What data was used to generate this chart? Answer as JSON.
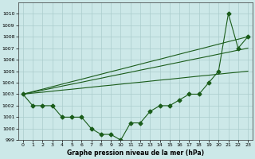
{
  "xlabel": "Graphe pression niveau de la mer (hPa)",
  "bg_color": "#cce8e8",
  "grid_color": "#aacccc",
  "line_color": "#1a5c1a",
  "x_values": [
    0,
    1,
    2,
    3,
    4,
    5,
    6,
    7,
    8,
    9,
    10,
    11,
    12,
    13,
    14,
    15,
    16,
    17,
    18,
    19,
    20,
    21,
    22,
    23
  ],
  "series_data": [
    1003,
    1002,
    1002,
    1002,
    1001,
    1001,
    1001,
    1000,
    999.5,
    999.5,
    999,
    1000.5,
    1000.5,
    1001.5,
    1002,
    1002,
    1002.5,
    1003,
    1003,
    1004,
    1005,
    1010,
    1007,
    1008
  ],
  "series_trend1": [
    1003,
    1003.22,
    1003.43,
    1003.65,
    1003.87,
    1004.09,
    1004.3,
    1004.52,
    1004.74,
    1004.96,
    1005.17,
    1005.39,
    1005.61,
    1005.83,
    1006.04,
    1006.26,
    1006.48,
    1006.7,
    1006.91,
    1007.13,
    1007.35,
    1007.57,
    1007.78,
    1008.0
  ],
  "series_trend2": [
    1003,
    1003.09,
    1003.17,
    1003.26,
    1003.35,
    1003.43,
    1003.52,
    1003.61,
    1003.7,
    1003.78,
    1003.87,
    1003.96,
    1004.04,
    1004.13,
    1004.22,
    1004.3,
    1004.39,
    1004.48,
    1004.57,
    1004.65,
    1004.74,
    1004.83,
    1004.91,
    1005.0
  ],
  "series_trend3": [
    1003,
    1003.17,
    1003.35,
    1003.52,
    1003.7,
    1003.87,
    1004.04,
    1004.22,
    1004.39,
    1004.57,
    1004.74,
    1004.91,
    1005.09,
    1005.26,
    1005.43,
    1005.61,
    1005.78,
    1005.96,
    1006.13,
    1006.3,
    1006.48,
    1006.65,
    1006.83,
    1007.0
  ],
  "ylim": [
    999,
    1011
  ],
  "yticks": [
    999,
    1000,
    1001,
    1002,
    1003,
    1004,
    1005,
    1006,
    1007,
    1008,
    1009,
    1010
  ],
  "marker": "D",
  "marker_size": 2.5,
  "linewidth": 0.8
}
